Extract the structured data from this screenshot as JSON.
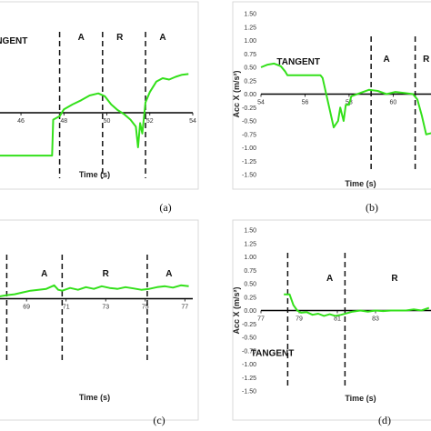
{
  "colors": {
    "series": "#33e01a",
    "axis": "#000000",
    "frame": "#d9d9d9",
    "divider": "#111111"
  },
  "chart_data": [
    {
      "id": "a",
      "type": "line",
      "panel_label": "(a)",
      "xlabel": "Time (s)",
      "ylabel": "",
      "xlim": [
        44.6,
        54
      ],
      "ylim": [
        -1.0,
        1.5
      ],
      "xticks": [
        46,
        48,
        50,
        52,
        54
      ],
      "xtick_labels": [
        "46",
        "48",
        "50",
        "52",
        "54"
      ],
      "region_labels": [
        {
          "text": "TANGENT",
          "x": 45.3,
          "y": 1.0
        },
        {
          "text": "A",
          "x": 48.8,
          "y": 1.05
        },
        {
          "text": "R",
          "x": 50.6,
          "y": 1.05
        },
        {
          "text": "A",
          "x": 52.6,
          "y": 1.05
        }
      ],
      "dividers": [
        47.8,
        49.8,
        51.8
      ],
      "series": [
        {
          "x": [
            44.6,
            47.45,
            47.5,
            47.8,
            48.0,
            48.4,
            48.8,
            49.2,
            49.6,
            49.9,
            50.2,
            50.5,
            50.8,
            51.1,
            51.35,
            51.45,
            51.55,
            51.65,
            51.8,
            52.0,
            52.3,
            52.6,
            52.9,
            53.2,
            53.5,
            53.8
          ],
          "y": [
            -0.62,
            -0.62,
            -0.1,
            -0.05,
            0.05,
            0.12,
            0.18,
            0.25,
            0.28,
            0.24,
            0.12,
            0.04,
            -0.02,
            -0.1,
            -0.2,
            -0.5,
            -0.15,
            -0.3,
            0.15,
            0.3,
            0.45,
            0.5,
            0.48,
            0.52,
            0.55,
            0.56
          ]
        }
      ]
    },
    {
      "id": "b",
      "type": "line",
      "panel_label": "(b)",
      "xlabel": "Time (s)",
      "ylabel": "Acc X (m/s²)",
      "xlim": [
        54,
        61.8
      ],
      "ylim": [
        -1.5,
        1.5
      ],
      "xticks": [
        54,
        56,
        58,
        60
      ],
      "xtick_labels": [
        "54",
        "56",
        "58",
        "60"
      ],
      "yticks": [
        -1.5,
        -1.25,
        -1.0,
        -0.75,
        -0.5,
        -0.25,
        0.0,
        0.25,
        0.5,
        0.75,
        1.0,
        1.25,
        1.5
      ],
      "ytick_labels": [
        "-1.50",
        "-1.25",
        "-1.00",
        "-0.75",
        "-0.50",
        "-0.25",
        "0.00",
        "0.25",
        "0.50",
        "0.75",
        "1.00",
        "1.25",
        "1.50"
      ],
      "region_labels": [
        {
          "text": "TANGENT",
          "x": 55.7,
          "y": 0.55
        },
        {
          "text": "A",
          "x": 59.7,
          "y": 0.6
        },
        {
          "text": "R",
          "x": 61.5,
          "y": 0.6
        }
      ],
      "dividers": [
        59.0,
        61.0
      ],
      "series": [
        {
          "x": [
            54,
            54.3,
            54.6,
            54.9,
            55.1,
            55.2,
            56.7,
            56.8,
            57.3,
            57.5,
            57.6,
            57.75,
            57.85,
            58.0,
            58.1,
            58.5,
            58.9,
            59.3,
            59.7,
            60.1,
            60.5,
            60.9,
            61.1,
            61.3,
            61.5,
            61.8
          ],
          "y": [
            0.5,
            0.55,
            0.57,
            0.52,
            0.42,
            0.35,
            0.35,
            0.3,
            -0.62,
            -0.5,
            -0.25,
            -0.5,
            -0.2,
            -0.2,
            -0.04,
            0.02,
            0.08,
            0.06,
            0.0,
            0.04,
            0.02,
            0.0,
            -0.1,
            -0.4,
            -0.75,
            -0.72
          ]
        }
      ]
    },
    {
      "id": "c",
      "type": "line",
      "panel_label": "(c)",
      "xlabel": "Time (s)",
      "ylabel": "",
      "xlim": [
        67.2,
        77.4
      ],
      "ylim": [
        -1.5,
        1.5
      ],
      "xticks": [
        69,
        71,
        73,
        75,
        77
      ],
      "xtick_labels": [
        "69",
        "71",
        "73",
        "75",
        "77"
      ],
      "region_labels": [
        {
          "text": "A",
          "x": 69.9,
          "y": 0.5
        },
        {
          "text": "R",
          "x": 73.0,
          "y": 0.5
        },
        {
          "text": "A",
          "x": 76.2,
          "y": 0.5
        }
      ],
      "dividers": [
        68.0,
        70.8,
        75.1
      ],
      "series": [
        {
          "x": [
            67.2,
            67.6,
            68.0,
            68.4,
            68.8,
            69.2,
            69.6,
            70.0,
            70.4,
            70.6,
            70.8,
            71.2,
            71.6,
            72.0,
            72.4,
            72.8,
            73.2,
            73.6,
            74.0,
            74.4,
            74.8,
            75.2,
            75.6,
            76.0,
            76.4,
            76.8,
            77.2
          ],
          "y": [
            0.0,
            0.05,
            0.08,
            0.1,
            0.14,
            0.18,
            0.2,
            0.22,
            0.3,
            0.2,
            0.18,
            0.24,
            0.2,
            0.26,
            0.22,
            0.28,
            0.24,
            0.22,
            0.26,
            0.23,
            0.2,
            0.22,
            0.26,
            0.28,
            0.25,
            0.3,
            0.28
          ]
        }
      ]
    },
    {
      "id": "d",
      "type": "line",
      "panel_label": "(d)",
      "xlabel": "Time (s)",
      "ylabel": "Acc X (m/s²)",
      "xlim": [
        77,
        86
      ],
      "ylim": [
        -1.5,
        1.5
      ],
      "xticks": [
        77,
        79,
        81,
        83
      ],
      "xtick_labels": [
        "77",
        "79",
        "81",
        "83"
      ],
      "yticks": [
        -1.5,
        -1.25,
        -1.0,
        -0.75,
        -0.5,
        -0.25,
        0.0,
        0.25,
        0.5,
        0.75,
        1.0,
        1.25,
        1.5
      ],
      "ytick_labels": [
        "-1.50",
        "-1.25",
        "-1.00",
        "-0.75",
        "-0.50",
        "-0.25",
        "0.00",
        "0.25",
        "0.50",
        "0.75",
        "1.00",
        "1.25",
        "1.50"
      ],
      "region_labels": [
        {
          "text": "TANGENT",
          "x": 77.6,
          "y": -0.85
        },
        {
          "text": "A",
          "x": 80.6,
          "y": 0.55
        },
        {
          "text": "R",
          "x": 84.0,
          "y": 0.55
        }
      ],
      "dividers": [
        78.4,
        81.4
      ],
      "series": [
        {
          "x": [
            78.2,
            78.5,
            78.7,
            78.9,
            79.1,
            79.4,
            79.7,
            80.0,
            80.3,
            80.6,
            80.9,
            81.2,
            81.5,
            81.8,
            82.2,
            82.6,
            83.0,
            83.4,
            83.8,
            84.2,
            84.6,
            85.0,
            85.4,
            85.8
          ],
          "y": [
            0.3,
            0.3,
            0.1,
            0.0,
            -0.04,
            -0.03,
            -0.08,
            -0.06,
            -0.1,
            -0.07,
            -0.1,
            -0.08,
            -0.05,
            -0.02,
            0.0,
            -0.02,
            0.0,
            -0.01,
            0.0,
            0.0,
            0.0,
            0.02,
            0.0,
            0.05
          ]
        }
      ]
    }
  ]
}
